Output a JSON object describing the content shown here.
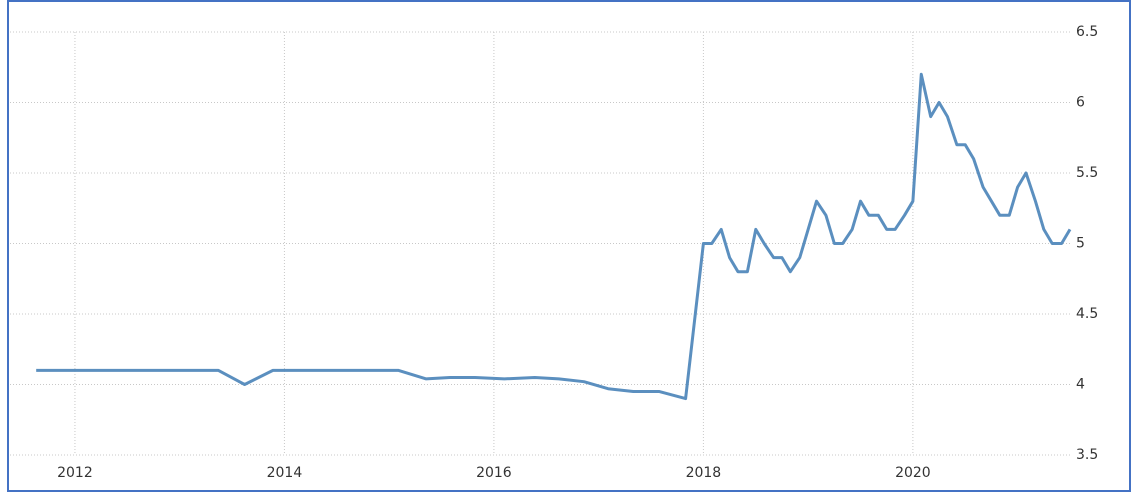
{
  "chart_data": {
    "type": "line",
    "x": [
      2011.63,
      2013.37,
      2013.62,
      2013.89,
      2015.09,
      2015.35,
      2015.58,
      2015.82,
      2016.1,
      2016.39,
      2016.62,
      2016.86,
      2017.09,
      2017.33,
      2017.58,
      2017.83,
      2018.0,
      2018.08,
      2018.17,
      2018.25,
      2018.33,
      2018.42,
      2018.5,
      2018.58,
      2018.67,
      2018.75,
      2018.83,
      2018.92,
      2019.0,
      2019.08,
      2019.17,
      2019.25,
      2019.33,
      2019.42,
      2019.5,
      2019.58,
      2019.67,
      2019.75,
      2019.83,
      2019.92,
      2020.0,
      2020.08,
      2020.17,
      2020.25,
      2020.33,
      2020.42,
      2020.5,
      2020.58,
      2020.67,
      2020.75,
      2020.83,
      2020.92,
      2021.0,
      2021.08,
      2021.17,
      2021.25,
      2021.33,
      2021.42,
      2021.5
    ],
    "series": [
      {
        "color": "#5b8fbf",
        "values": [
          4.1,
          4.1,
          4.0,
          4.1,
          4.1,
          4.04,
          4.05,
          4.05,
          4.04,
          4.05,
          4.04,
          4.02,
          3.97,
          3.95,
          3.95,
          3.9,
          5.0,
          5.0,
          5.1,
          4.9,
          4.8,
          4.8,
          5.1,
          5.0,
          4.9,
          4.9,
          4.8,
          4.9,
          5.1,
          5.3,
          5.2,
          5.0,
          5.0,
          5.1,
          5.3,
          5.2,
          5.2,
          5.1,
          5.1,
          5.2,
          5.3,
          6.2,
          5.9,
          6.0,
          5.9,
          5.7,
          5.7,
          5.6,
          5.4,
          5.3,
          5.2,
          5.2,
          5.4,
          5.5,
          5.3,
          5.1,
          5.0,
          5.0,
          5.1
        ]
      }
    ],
    "xlim": [
      2011.38,
      2021.5
    ],
    "xticks": [
      2012,
      2014,
      2016,
      2018,
      2020
    ],
    "ylim": [
      3.5,
      6.5
    ],
    "yticks": [
      3.5,
      4,
      4.5,
      5,
      5.5,
      6,
      6.5
    ],
    "grid": true
  }
}
